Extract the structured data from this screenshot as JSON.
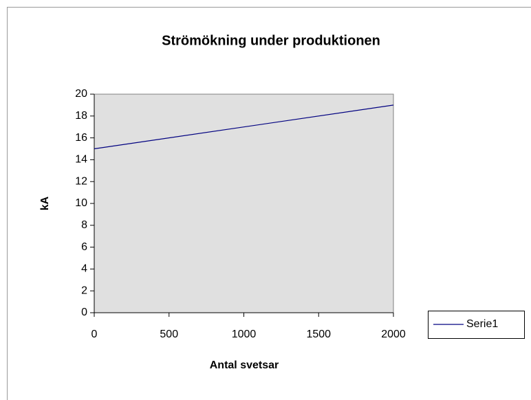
{
  "chart_data": {
    "type": "line",
    "title": "Strömökning under produktionen",
    "xlabel": "Antal svetsar",
    "ylabel": "kA",
    "x": [
      0,
      2000
    ],
    "series": [
      {
        "name": "Serie1",
        "color": "#000080",
        "values": [
          15,
          19
        ]
      }
    ],
    "xlim": [
      0,
      2000
    ],
    "xticks": [
      0,
      500,
      1000,
      1500,
      2000
    ],
    "ylim": [
      0,
      20
    ],
    "yticks": [
      0,
      2,
      4,
      6,
      8,
      10,
      12,
      14,
      16,
      18,
      20
    ],
    "grid": false,
    "legend": "right",
    "plot_background": "#e0e0e0"
  }
}
